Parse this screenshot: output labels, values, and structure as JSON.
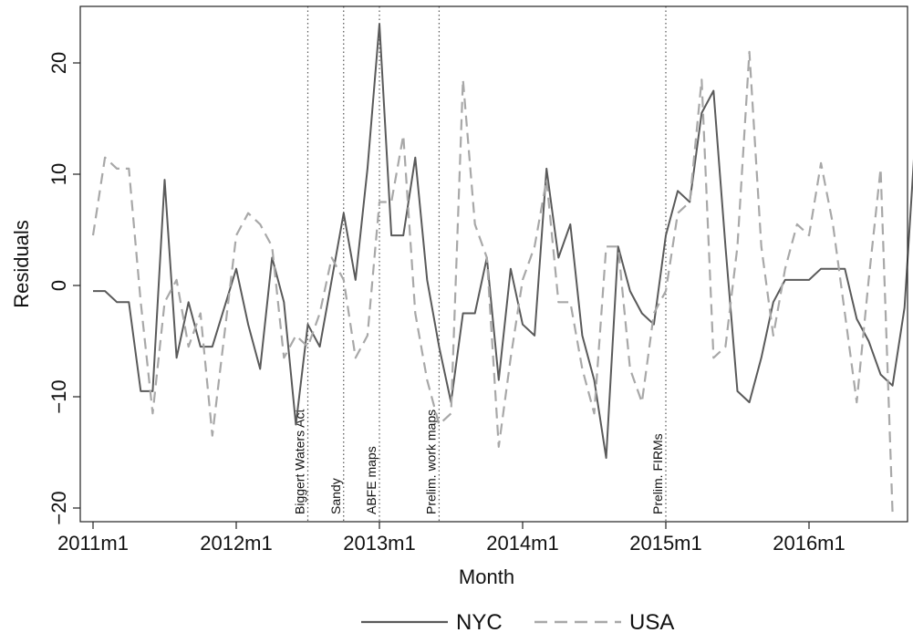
{
  "chart_data": {
    "type": "line",
    "xlabel": "Month",
    "ylabel": "Residuals",
    "xlim": [
      0,
      68.8
    ],
    "ylim": [
      -21.5,
      25
    ],
    "grid": false,
    "legend_position": "bottom",
    "x_ticks": [
      {
        "x": 0,
        "label": "2011m1"
      },
      {
        "x": 12,
        "label": "2012m1"
      },
      {
        "x": 24,
        "label": "2013m1"
      },
      {
        "x": 36,
        "label": "2014m1"
      },
      {
        "x": 48,
        "label": "2015m1"
      },
      {
        "x": 60,
        "label": "2016m1"
      }
    ],
    "y_ticks": [
      {
        "y": -20,
        "label": "−20"
      },
      {
        "y": -10,
        "label": "−10"
      },
      {
        "y": 0,
        "label": "0"
      },
      {
        "y": 10,
        "label": "10"
      },
      {
        "y": 20,
        "label": "20"
      }
    ],
    "events": [
      {
        "x": 18,
        "label": "Biggert Waters Act"
      },
      {
        "x": 21,
        "label": "Sandy"
      },
      {
        "x": 24,
        "label": "ABFE maps"
      },
      {
        "x": 29,
        "label": "Prelim. work maps"
      },
      {
        "x": 48,
        "label": "Prelim. FIRMs"
      }
    ],
    "series": [
      {
        "name": "NYC",
        "color": "#5a5a5a",
        "dash": "solid",
        "values": [
          -0.5,
          -0.5,
          -1.5,
          -1.5,
          -9.5,
          -9.5,
          9.5,
          -6.5,
          -1.5,
          -5.5,
          -5.5,
          -2.0,
          1.5,
          -3.5,
          -7.5,
          2.5,
          -1.5,
          -12.5,
          -3.5,
          -5.5,
          0.5,
          6.5,
          0.5,
          10.5,
          23.5,
          4.5,
          4.5,
          11.5,
          0.5,
          -5.5,
          -10.5,
          -2.5,
          -2.5,
          2.5,
          -8.5,
          1.5,
          -3.5,
          -4.5,
          10.5,
          2.5,
          5.5,
          -4.5,
          -8.5,
          -15.5,
          3.5,
          -0.5,
          -2.5,
          -3.5,
          4.5,
          8.5,
          7.5,
          15.5,
          17.5,
          3.5,
          -9.5,
          -10.5,
          -6.5,
          -1.5,
          0.5,
          0.5,
          0.5,
          1.5,
          1.5,
          1.5,
          -3.0,
          -5.0,
          -8.0,
          -9.0,
          -2.0,
          15.0
        ]
      },
      {
        "name": "USA",
        "color": "#a8a8a8",
        "dash": "dashed",
        "values": [
          4.5,
          11.5,
          10.5,
          10.5,
          -1.5,
          -11.5,
          -1.5,
          0.5,
          -5.5,
          -2.5,
          -13.5,
          -4.5,
          4.5,
          6.5,
          5.5,
          3.5,
          -6.5,
          -4.5,
          -5.5,
          -2.5,
          2.5,
          0.5,
          -6.5,
          -4.5,
          7.5,
          7.5,
          13.5,
          -2.5,
          -8.5,
          -12.5,
          -11.5,
          18.5,
          5.5,
          2.5,
          -14.5,
          -6.5,
          0.5,
          3.5,
          9.5,
          -1.5,
          -1.5,
          -7.5,
          -11.5,
          3.5,
          3.5,
          -7.5,
          -10.5,
          -2.5,
          -0.5,
          6.5,
          7.5,
          18.5,
          -6.5,
          -5.5,
          3.5,
          21.0,
          3.5,
          -4.5,
          1.5,
          5.5,
          4.5,
          11.0,
          5.5,
          -2.5,
          -10.5,
          0.5,
          10.5,
          -20.5
        ]
      }
    ]
  }
}
